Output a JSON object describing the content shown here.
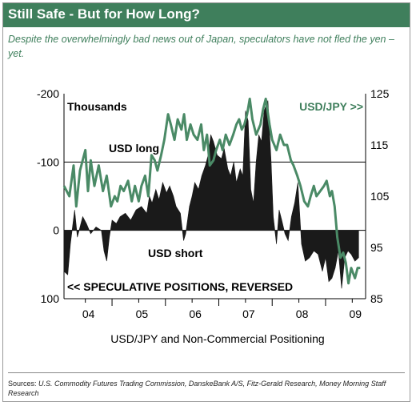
{
  "header": {
    "title": "Still Safe - But for How Long?",
    "subtitle": "Despite the overwhelmingly bad news out of Japan, speculators have not fled the yen – yet."
  },
  "footer": {
    "sources_label": "Sources:",
    "sources_text": "U.S. Commodity Futures Trading Commission, DanskeBank A/S, Fitz-Gerald Research, Money Morning Staff Research"
  },
  "chart_data": {
    "type": "line",
    "xlabel": "USD/JPY and Non-Commercial Positioning",
    "x_ticks": [
      "04",
      "05",
      "06",
      "07",
      "08",
      "09"
    ],
    "x_range": [
      2003.6,
      2009.25
    ],
    "left_axis": {
      "label": "Thousands",
      "note": "<< SPECULATIVE POSITIONS, REVERSED",
      "reversed": true,
      "range": [
        -200,
        100
      ],
      "ticks": [
        "-200",
        "-100",
        "0",
        "100"
      ]
    },
    "right_axis": {
      "label": "USD/JPY >>",
      "range": [
        85,
        125
      ],
      "ticks": [
        "125",
        "115",
        "105",
        "95",
        "85"
      ]
    },
    "annotations": [
      {
        "text": "USD long"
      },
      {
        "text": "USD short"
      }
    ],
    "gridlines": [
      -100,
      0
    ],
    "colors": {
      "price_line": "#4a8a66",
      "positions_area": "#1a1a1a",
      "accent": "#3f7f5c"
    },
    "series": [
      {
        "name": "USD/JPY >>",
        "axis": "right",
        "x": [
          2003.6,
          2003.7,
          2003.78,
          2003.83,
          2003.9,
          2004.0,
          2004.05,
          2004.1,
          2004.17,
          2004.25,
          2004.33,
          2004.4,
          2004.48,
          2004.55,
          2004.6,
          2004.66,
          2004.72,
          2004.8,
          2004.87,
          2004.93,
          2005.0,
          2005.05,
          2005.12,
          2005.18,
          2005.24,
          2005.3,
          2005.35,
          2005.42,
          2005.48,
          2005.55,
          2005.6,
          2005.67,
          2005.73,
          2005.8,
          2005.85,
          2005.9,
          2005.97,
          2006.03,
          2006.1,
          2006.17,
          2006.22,
          2006.28,
          2006.33,
          2006.4,
          2006.45,
          2006.52,
          2006.57,
          2006.63,
          2006.7,
          2006.77,
          2006.83,
          2006.88,
          2006.93,
          2006.98,
          2007.03,
          2007.08,
          2007.13,
          2007.2,
          2007.28,
          2007.33,
          2007.38,
          2007.45,
          2007.5,
          2007.58,
          2007.65,
          2007.72,
          2007.78,
          2007.85,
          2007.9,
          2007.97,
          2008.03,
          2008.1,
          2008.17,
          2008.22,
          2008.28,
          2008.33,
          2008.4,
          2008.47,
          2008.52,
          2008.58,
          2008.62,
          2008.67,
          2008.72,
          2008.78,
          2008.83,
          2008.88,
          2008.93,
          2008.98,
          2009.05,
          2009.1,
          2009.15
        ],
        "values": [
          107,
          105,
          111,
          103,
          110,
          114,
          106,
          112,
          107,
          111,
          106,
          109,
          103,
          105,
          104,
          107,
          106,
          108,
          104,
          107,
          104,
          107,
          109,
          105,
          113,
          112,
          110,
          113,
          116,
          121,
          119,
          116,
          120,
          118,
          121,
          116,
          119,
          117,
          116,
          119,
          114,
          117,
          111,
          112,
          114,
          116,
          114,
          117,
          115,
          117,
          119,
          120,
          118,
          119,
          121,
          124,
          120,
          117,
          119,
          122,
          124,
          119,
          116,
          114,
          117,
          115,
          115,
          112,
          111,
          109,
          107,
          104,
          103,
          105,
          107,
          105,
          106,
          107,
          108,
          105,
          106,
          103,
          97,
          93,
          94,
          92,
          88,
          91,
          89,
          91,
          91
        ]
      },
      {
        "name": "Speculative positions",
        "axis": "left",
        "x": [
          2003.6,
          2003.67,
          2003.72,
          2003.8,
          2003.85,
          2003.95,
          2004.02,
          2004.1,
          2004.2,
          2004.3,
          2004.35,
          2004.4,
          2004.45,
          2004.5,
          2004.58,
          2004.65,
          2004.75,
          2004.85,
          2004.95,
          2005.05,
          2005.15,
          2005.2,
          2005.25,
          2005.32,
          2005.38,
          2005.45,
          2005.52,
          2005.58,
          2005.65,
          2005.7,
          2005.78,
          2005.84,
          2005.88,
          2005.95,
          2006.0,
          2006.05,
          2006.12,
          2006.18,
          2006.25,
          2006.3,
          2006.35,
          2006.4,
          2006.47,
          2006.55,
          2006.6,
          2006.67,
          2006.72,
          2006.78,
          2006.83,
          2006.9,
          2006.95,
          2007.0,
          2007.05,
          2007.1,
          2007.15,
          2007.2,
          2007.25,
          2007.3,
          2007.35,
          2007.42,
          2007.48,
          2007.52,
          2007.58,
          2007.63,
          2007.68,
          2007.74,
          2007.8,
          2007.86,
          2007.92,
          2007.98,
          2008.05,
          2008.12,
          2008.2,
          2008.28,
          2008.36,
          2008.44,
          2008.5,
          2008.56,
          2008.62,
          2008.68,
          2008.74,
          2008.8,
          2008.86,
          2008.92,
          2008.98,
          2009.05,
          2009.12
        ],
        "values": [
          60,
          65,
          20,
          -30,
          10,
          -20,
          -10,
          5,
          -5,
          0,
          30,
          45,
          10,
          -15,
          -10,
          -20,
          -25,
          -15,
          -30,
          -35,
          -25,
          -50,
          -40,
          -60,
          -45,
          -70,
          -55,
          -65,
          -50,
          -35,
          -25,
          15,
          5,
          -35,
          -50,
          -70,
          -60,
          -80,
          -95,
          -110,
          -140,
          -130,
          -110,
          -105,
          -120,
          -90,
          -80,
          -100,
          -70,
          -90,
          -80,
          -175,
          -160,
          -60,
          -40,
          -100,
          -140,
          -130,
          -175,
          -190,
          -100,
          -20,
          20,
          -30,
          -15,
          5,
          15,
          -20,
          -40,
          -70,
          20,
          45,
          40,
          30,
          35,
          60,
          40,
          75,
          70,
          55,
          30,
          85,
          40,
          30,
          35,
          45,
          40
        ]
      }
    ]
  }
}
